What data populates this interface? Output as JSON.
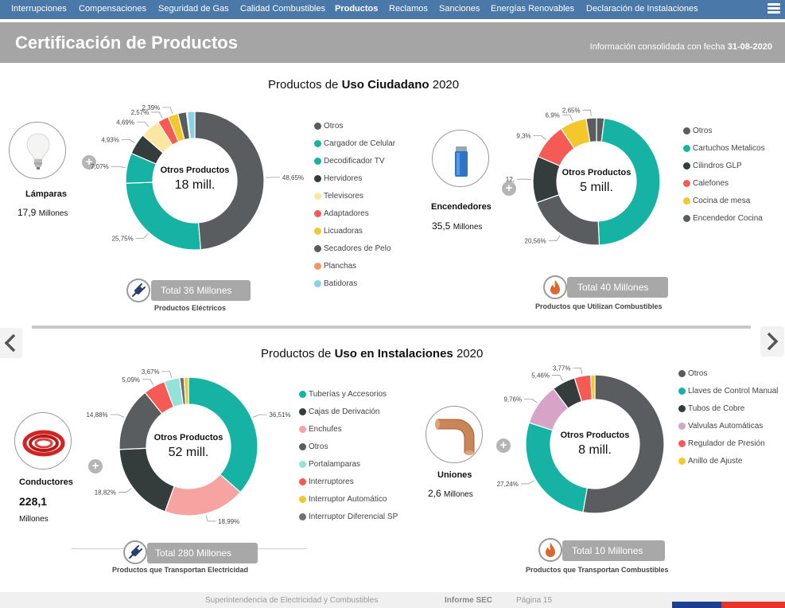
{
  "nav": {
    "items": [
      "Interrupciones",
      "Compensaciones",
      "Seguridad de Gas",
      "Calidad Combustibles",
      "Productos",
      "Reclamos",
      "Sanciones",
      "Energías Renovables",
      "Declaración de Instalaciones"
    ],
    "active": "Productos"
  },
  "header": {
    "title": "Certificación de Productos",
    "consolidated_label": "Información consolidada con fecha",
    "consolidated_date": "31-08-2020"
  },
  "section_top": {
    "pre": "Productos de",
    "bold": "Uso Ciudadano",
    "post": "2020"
  },
  "section_bottom": {
    "pre": "Productos de",
    "bold": "Uso en Instalaciones",
    "post": "2020"
  },
  "center_label": "Otros Productos",
  "categories": {
    "lamparas": {
      "name": "Lámparas",
      "value": "17,9",
      "unit": "Millones"
    },
    "encendedores": {
      "name": "Encendedores",
      "value": "35,5",
      "unit": "Millones"
    },
    "conductores": {
      "name": "Conductores",
      "value": "228,1",
      "unit": "Millones"
    },
    "uniones": {
      "name": "Uniones",
      "value": "2,6",
      "unit": "Millones"
    }
  },
  "totals": {
    "electricos": {
      "label": "Total 36 Millones",
      "caption": "Productos Eléctricos"
    },
    "combustibles": {
      "label": "Total 40 Millones",
      "caption": "Productos que Utilizan Combustibles"
    },
    "transportan_elec": {
      "label": "Total 280 Millones",
      "caption": "Productos que Transportan Electricidad"
    },
    "transportan_comb": {
      "label": "Total 10 Millones",
      "caption": "Productos que Transportan Combustibles"
    }
  },
  "colors": {
    "dark_gray": "#595d5f",
    "teal": "#16b3a4",
    "charcoal": "#343c3c",
    "pale_yellow": "#fbe7a2",
    "red": "#f55a55",
    "yellow": "#f3c82c",
    "peach": "#f8946a",
    "light_blue": "#86d3e8",
    "mauve": "#d7a4c8",
    "pink": "#f7a3a1",
    "mint": "#94e3d8",
    "gray": "#717171"
  },
  "chart_data": [
    {
      "type": "pie",
      "id": "electricos",
      "center_value": "18 mill.",
      "slices": [
        {
          "label": "Otros",
          "value": 48.65,
          "color": "#595d5f",
          "pct_label": "48,65%"
        },
        {
          "label": "Cargador de Celular",
          "value": 25.75,
          "color": "#16b3a4",
          "pct_label": "25,75%"
        },
        {
          "label": "Decodificador TV",
          "value": 7.07,
          "color": "#16b3a4",
          "pct_label": "7,07%"
        },
        {
          "label": "Hervidores",
          "value": 4.93,
          "color": "#343c3c",
          "pct_label": "4,93%"
        },
        {
          "label": "Televisores",
          "value": 4.69,
          "color": "#fbe7a2",
          "pct_label": "4,69%"
        },
        {
          "label": "Adaptadores",
          "value": 2.57,
          "color": "#f55a55",
          "pct_label": "2,57%"
        },
        {
          "label": "Licuadoras",
          "value": 2.39,
          "color": "#f3c82c",
          "pct_label": "2,39%"
        },
        {
          "label": "Secadores de Pelo",
          "value": 2.0,
          "color": "#595d5f",
          "pct_label": ""
        },
        {
          "label": "Planchas",
          "value": 0.2,
          "color": "#f8946a",
          "pct_label": ""
        },
        {
          "label": "Batidoras",
          "value": 1.75,
          "color": "#86d3e8",
          "pct_label": ""
        }
      ]
    },
    {
      "type": "pie",
      "id": "combustibles",
      "center_value": "5 mill.",
      "slices": [
        {
          "label": "Otros",
          "value": 2.0,
          "color": "#595d5f",
          "pct_label": ""
        },
        {
          "label": "Cartuchos Metalicos",
          "value": 48.0,
          "color": "#16b3a4",
          "pct_label": ""
        },
        {
          "label": "Encendedor Cocina",
          "value": 20.56,
          "color": "#595d5f",
          "pct_label": "20,56%"
        },
        {
          "label": "Cilindros GLP",
          "value": 12.0,
          "color": "#343c3c",
          "pct_label": "12,"
        },
        {
          "label": "Calefones",
          "value": 9.3,
          "color": "#f55a55",
          "pct_label": "9,3%"
        },
        {
          "label": "Cocina de mesa",
          "value": 6.9,
          "color": "#f3c82c",
          "pct_label": "6,9%"
        },
        {
          "label": "Otros",
          "value": 2.65,
          "color": "#595d5f",
          "pct_label": "2,65%"
        }
      ],
      "legend": [
        {
          "label": "Otros",
          "color": "#595d5f"
        },
        {
          "label": "Cartuchos Metalicos",
          "color": "#16b3a4"
        },
        {
          "label": "Cilindros GLP",
          "color": "#343c3c"
        },
        {
          "label": "Calefones",
          "color": "#f55a55"
        },
        {
          "label": "Cocina de mesa",
          "color": "#f3c82c"
        },
        {
          "label": "Encendedor Cocina",
          "color": "#595d5f"
        }
      ]
    },
    {
      "type": "pie",
      "id": "transportan_elec",
      "center_value": "52 mill.",
      "slices": [
        {
          "label": "Tuberías y Accesorios",
          "value": 36.51,
          "color": "#16b3a4",
          "pct_label": "36,51%"
        },
        {
          "label": "Enchufes",
          "value": 18.99,
          "color": "#f7a3a1",
          "pct_label": "18,99%"
        },
        {
          "label": "Cajas de Derivación",
          "value": 18.82,
          "color": "#343c3c",
          "pct_label": "18,82%"
        },
        {
          "label": "Otros",
          "value": 14.88,
          "color": "#595d5f",
          "pct_label": "14,88%"
        },
        {
          "label": "Interruptores",
          "value": 5.09,
          "color": "#f55a55",
          "pct_label": "5,09%"
        },
        {
          "label": "Portalamparas",
          "value": 3.67,
          "color": "#94e3d8",
          "pct_label": "3,67%"
        },
        {
          "label": "Interruptor Diferencial SP",
          "value": 1.0,
          "color": "#717171",
          "pct_label": ""
        },
        {
          "label": "Interruptor Automático",
          "value": 1.04,
          "color": "#f3c82c",
          "pct_label": ""
        }
      ],
      "legend": [
        {
          "label": "Tuberías y Accesorios",
          "color": "#16b3a4"
        },
        {
          "label": "Cajas de Derivación",
          "color": "#343c3c"
        },
        {
          "label": "Enchufes",
          "color": "#f7a3a1"
        },
        {
          "label": "Otros",
          "color": "#595d5f"
        },
        {
          "label": "Portalamparas",
          "color": "#94e3d8"
        },
        {
          "label": "Interruptores",
          "color": "#f55a55"
        },
        {
          "label": "Interruptor Automático",
          "color": "#f3c82c"
        },
        {
          "label": "Interruptor Diferencial SP",
          "color": "#717171"
        }
      ]
    },
    {
      "type": "pie",
      "id": "transportan_comb",
      "center_value": "8 mill.",
      "slices": [
        {
          "label": "Otros",
          "value": 52.77,
          "color": "#595d5f",
          "pct_label": ""
        },
        {
          "label": "Llaves de Control Manual",
          "value": 27.24,
          "color": "#16b3a4",
          "pct_label": "27,24%"
        },
        {
          "label": "Valvulas Automáticas",
          "value": 9.76,
          "color": "#d7a4c8",
          "pct_label": "9,76%"
        },
        {
          "label": "Tubos de Cobre",
          "value": 5.46,
          "color": "#343c3c",
          "pct_label": "5,46%"
        },
        {
          "label": "Regulador de Presión",
          "value": 3.77,
          "color": "#f55a55",
          "pct_label": "3,77%"
        },
        {
          "label": "Anillo de Ajuste",
          "value": 1.0,
          "color": "#f3c82c",
          "pct_label": ""
        }
      ],
      "legend": [
        {
          "label": "Otros",
          "color": "#595d5f"
        },
        {
          "label": "Llaves de Control Manual",
          "color": "#16b3a4"
        },
        {
          "label": "Tubos de Cobre",
          "color": "#343c3c"
        },
        {
          "label": "Valvulas Automáticas",
          "color": "#d7a4c8"
        },
        {
          "label": "Regulador de Presión",
          "color": "#f55a55"
        },
        {
          "label": "Anillo de Ajuste",
          "color": "#f3c82c"
        }
      ]
    }
  ],
  "footer": {
    "org": "Superintendencia de Electricidad y Combustibles",
    "report": "Informe SEC",
    "page": "Página 15"
  }
}
